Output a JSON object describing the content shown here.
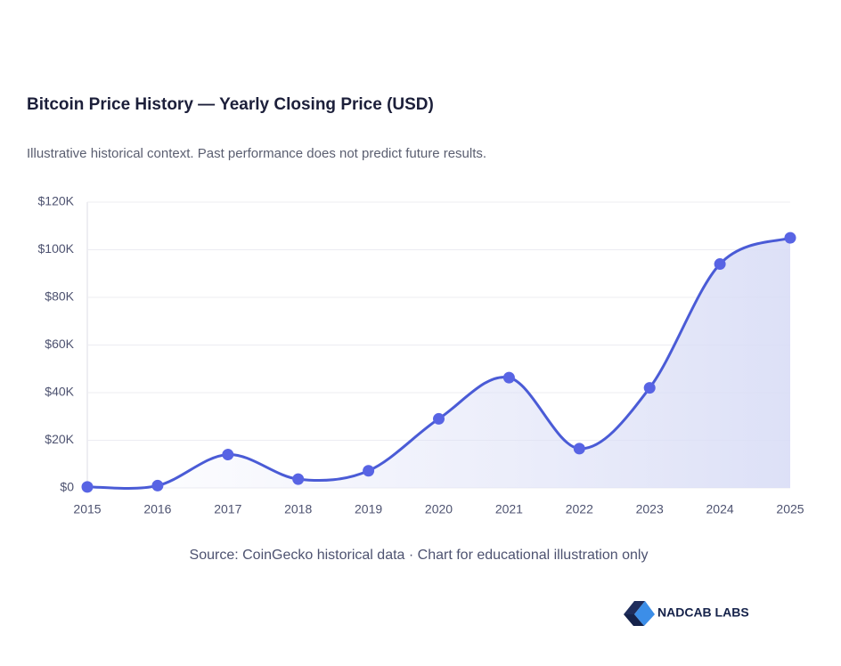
{
  "chart_data": {
    "type": "line",
    "title": "Bitcoin Price History — Yearly Closing Price (USD)",
    "subtitle": "Illustrative historical context. Past performance does not predict future results.",
    "categories": [
      "2015",
      "2016",
      "2017",
      "2018",
      "2019",
      "2020",
      "2021",
      "2022",
      "2023",
      "2024",
      "2025"
    ],
    "values": [
      430,
      964,
      14000,
      3700,
      7200,
      29000,
      46300,
      16500,
      42000,
      94000,
      105000
    ],
    "color": "#4a5bd6",
    "ylim": [
      0,
      120000
    ],
    "yticks": [
      {
        "value": 0,
        "label": "$0"
      },
      {
        "value": 20000,
        "label": "$20K"
      },
      {
        "value": 40000,
        "label": "$40K"
      },
      {
        "value": 60000,
        "label": "$60K"
      },
      {
        "value": 80000,
        "label": "$80K"
      },
      {
        "value": 100000,
        "label": "$100K"
      },
      {
        "value": 120000,
        "label": "$120K"
      }
    ],
    "grid": true,
    "source": "Source: CoinGecko historical data · Chart for educational illustration only"
  },
  "branding": {
    "logo_text": "NADCAB LABS"
  }
}
